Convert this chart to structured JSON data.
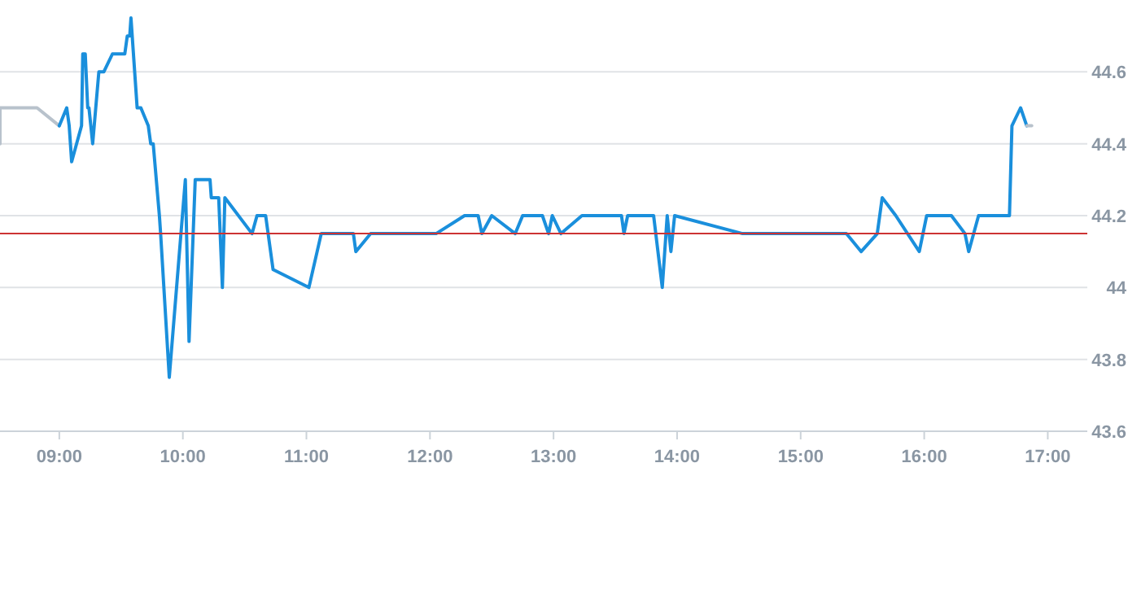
{
  "chart_data": {
    "type": "line",
    "xlim": [
      8.52,
      17.32
    ],
    "ylim": [
      43.6,
      44.8
    ],
    "xticks": [
      {
        "value": 9,
        "label": "09:00"
      },
      {
        "value": 10,
        "label": "10:00"
      },
      {
        "value": 11,
        "label": "11:00"
      },
      {
        "value": 12,
        "label": "12:00"
      },
      {
        "value": 13,
        "label": "13:00"
      },
      {
        "value": 14,
        "label": "14:00"
      },
      {
        "value": 15,
        "label": "15:00"
      },
      {
        "value": 16,
        "label": "16:00"
      },
      {
        "value": 17,
        "label": "17:00"
      }
    ],
    "yticks": [
      43.6,
      43.8,
      {
        "value": 44,
        "label": "44"
      },
      44.2,
      44.4,
      44.6
    ],
    "grid": "y",
    "marker": "none",
    "line_style": "solid",
    "ref_lines": [
      {
        "axis": "y",
        "value": 44.15,
        "label": null,
        "color": "#cc3333"
      }
    ],
    "series": [
      {
        "color": "#b8c2cc",
        "x": [
          8.52,
          8.52,
          8.82,
          9.0
        ],
        "values": [
          44.4,
          44.5,
          44.5,
          44.45
        ]
      },
      {
        "color": "#1a8fdc",
        "x": [
          9.0,
          9.06,
          9.08,
          9.1,
          9.18,
          9.19,
          9.21,
          9.23,
          9.24,
          9.27,
          9.32,
          9.36,
          9.43,
          9.53,
          9.55,
          9.57,
          9.58,
          9.63,
          9.66,
          9.72,
          9.74,
          9.76,
          9.81,
          9.82,
          9.89,
          10.02,
          10.05,
          10.1,
          10.22,
          10.23,
          10.29,
          10.32,
          10.34,
          10.56,
          10.6,
          10.67,
          10.73,
          11.02,
          11.12,
          11.38,
          11.4,
          11.52,
          12.05,
          12.28,
          12.39,
          12.42,
          12.5,
          12.69,
          12.75,
          12.91,
          12.96,
          12.99,
          13.06,
          13.23,
          13.55,
          13.57,
          13.6,
          13.81,
          13.88,
          13.92,
          13.95,
          13.98,
          14.53,
          15.37,
          15.49,
          15.62,
          15.66,
          15.77,
          15.96,
          16.02,
          16.22,
          16.33,
          16.36,
          16.44,
          16.69,
          16.71,
          16.78,
          16.83
        ],
        "values": [
          44.45,
          44.5,
          44.45,
          44.35,
          44.45,
          44.65,
          44.65,
          44.5,
          44.5,
          44.4,
          44.6,
          44.6,
          44.65,
          44.65,
          44.7,
          44.7,
          44.75,
          44.5,
          44.5,
          44.45,
          44.4,
          44.4,
          44.2,
          44.15,
          43.75,
          44.3,
          43.85,
          44.3,
          44.3,
          44.25,
          44.25,
          44.0,
          44.25,
          44.15,
          44.2,
          44.2,
          44.05,
          44.0,
          44.15,
          44.15,
          44.1,
          44.15,
          44.15,
          44.2,
          44.2,
          44.15,
          44.2,
          44.15,
          44.2,
          44.2,
          44.15,
          44.2,
          44.15,
          44.2,
          44.2,
          44.15,
          44.2,
          44.2,
          44.0,
          44.2,
          44.1,
          44.2,
          44.15,
          44.15,
          44.1,
          44.15,
          44.25,
          44.2,
          44.1,
          44.2,
          44.2,
          44.15,
          44.1,
          44.2,
          44.2,
          44.45,
          44.5,
          44.45
        ]
      },
      {
        "color": "#b8c2cc",
        "x": [
          16.83,
          16.87
        ],
        "values": [
          44.45,
          44.45
        ]
      }
    ]
  }
}
